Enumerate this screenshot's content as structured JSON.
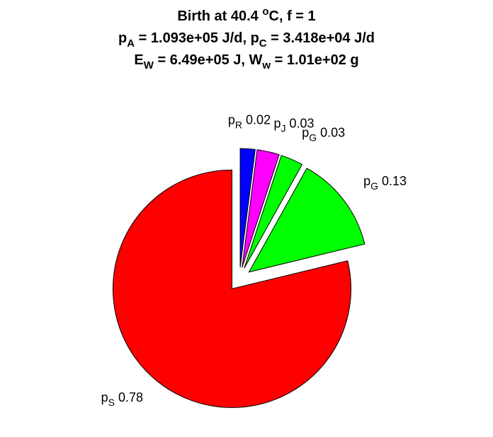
{
  "title": {
    "line1": {
      "prefix": "Birth at 40.4 ",
      "sup": "o",
      "suffix": "C, f = 1"
    },
    "line2": {
      "a_p": "p",
      "a_sub": "A",
      "a_val": " = 1.093e+05 J/d, ",
      "c_p": "p",
      "c_sub": "C",
      "c_val": " = 3.418e+04 J/d"
    },
    "line3": {
      "e_p": "E",
      "e_sub": "W",
      "e_val": " = 6.49e+05 J, ",
      "w_p": "W",
      "w_sub": "w",
      "w_val": " = 1.01e+02 g"
    }
  },
  "chart_data": {
    "type": "pie",
    "start": "12 o'clock, clockwise",
    "exploded": true,
    "slices": [
      {
        "name": "p",
        "sub": "R",
        "value": 0.02,
        "label": "0.02",
        "color": "#0000ff"
      },
      {
        "name": "p",
        "sub": "J",
        "value": 0.03,
        "label": "0.03",
        "color": "#ff00ff"
      },
      {
        "name": "p",
        "sub": "G",
        "value": 0.03,
        "label": "0.03",
        "color": "#00ff00"
      },
      {
        "name": "p",
        "sub": "G",
        "value": 0.13,
        "label": "0.13",
        "color": "#00ff00"
      },
      {
        "name": "p",
        "sub": "S",
        "value": 0.78,
        "label": "0.78",
        "color": "#ff0000"
      }
    ]
  }
}
